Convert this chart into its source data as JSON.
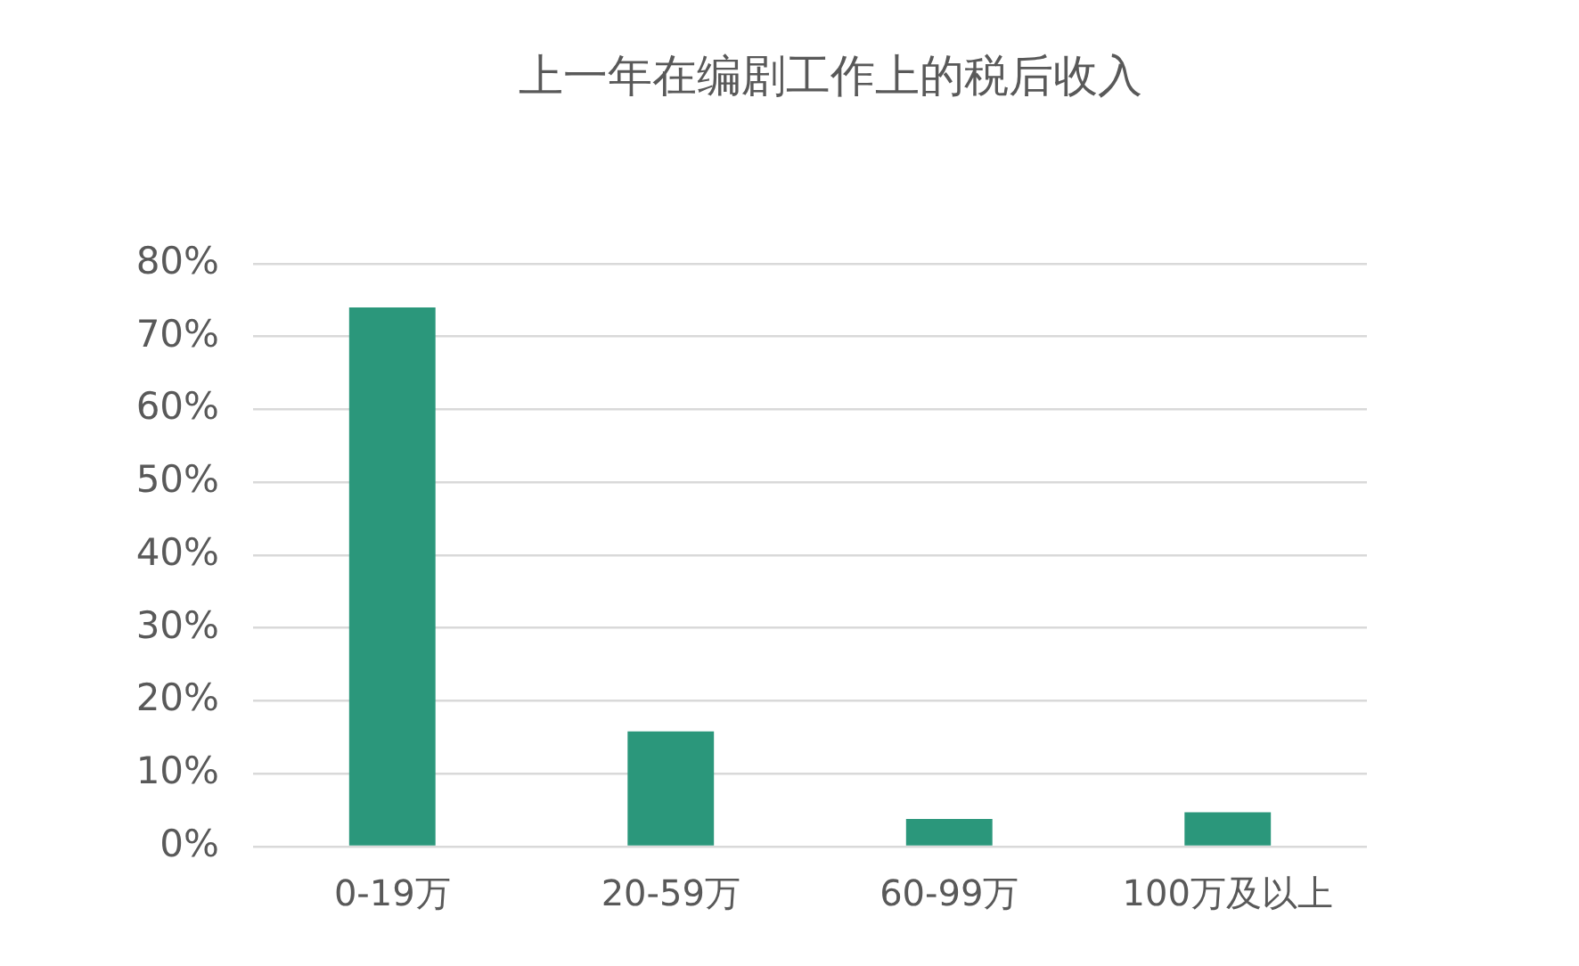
{
  "chart_data": {
    "type": "bar",
    "title": "上一年在编剧工作上的税后收入",
    "categories": [
      "0-19万",
      "20-59万",
      "60-99万",
      "100万及以上"
    ],
    "values": [
      74,
      15.8,
      3.8,
      4.7
    ],
    "color": "#2b977b",
    "ylim": [
      0,
      80
    ],
    "yticks": [
      {
        "value": 0,
        "label": "0%"
      },
      {
        "value": 10,
        "label": "10%"
      },
      {
        "value": 20,
        "label": "20%"
      },
      {
        "value": 30,
        "label": "30%"
      },
      {
        "value": 40,
        "label": "40%"
      },
      {
        "value": 50,
        "label": "50%"
      },
      {
        "value": 60,
        "label": "60%"
      },
      {
        "value": 70,
        "label": "70%"
      },
      {
        "value": 80,
        "label": "80%"
      }
    ],
    "grid": "y"
  }
}
